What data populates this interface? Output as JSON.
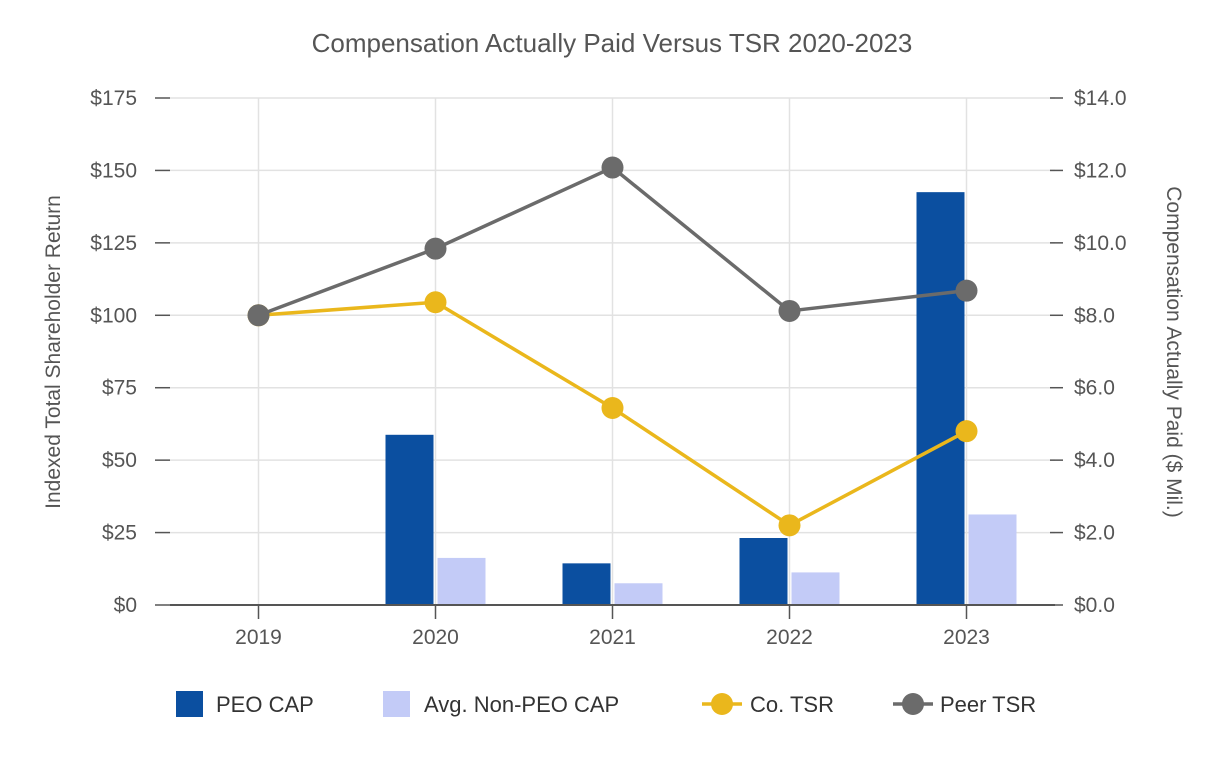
{
  "chart_data": {
    "type": "bar",
    "title": "Compensation Actually Paid Versus TSR 2020-2023",
    "categories": [
      "2019",
      "2020",
      "2021",
      "2022",
      "2023"
    ],
    "y_left": {
      "label": "Indexed Total Shareholder Return",
      "ylim": [
        0,
        175
      ],
      "ticks": [
        0,
        25,
        50,
        75,
        100,
        125,
        150,
        175
      ],
      "tick_labels": [
        "$0",
        "$25",
        "$50",
        "$75",
        "$100",
        "$125",
        "$150",
        "$175"
      ]
    },
    "y_right": {
      "label": "Compensation Actually Paid ($ Mil.)",
      "ylim": [
        0,
        14
      ],
      "ticks": [
        0,
        2,
        4,
        6,
        8,
        10,
        12,
        14
      ],
      "tick_labels": [
        "$0.0",
        "$2.0",
        "$4.0",
        "$6.0",
        "$8.0",
        "$10.0",
        "$12.0",
        "$14.0"
      ]
    },
    "series": [
      {
        "name": "PEO CAP",
        "type": "bar",
        "axis": "right",
        "color": "#0b4fa0",
        "values": [
          null,
          4.7,
          1.15,
          1.85,
          11.4
        ]
      },
      {
        "name": "Avg. Non-PEO CAP",
        "type": "bar",
        "axis": "right",
        "color": "#c3cbf7",
        "values": [
          null,
          1.3,
          0.6,
          0.9,
          2.5
        ]
      },
      {
        "name": "Co. TSR",
        "type": "line",
        "axis": "left",
        "color": "#eab71c",
        "values": [
          100,
          104.5,
          68,
          27.5,
          60
        ]
      },
      {
        "name": "Peer TSR",
        "type": "line",
        "axis": "left",
        "color": "#6b6b6b",
        "values": [
          100,
          123,
          151,
          101.5,
          108.5
        ]
      }
    ],
    "grid": true,
    "legend_position": "bottom"
  }
}
